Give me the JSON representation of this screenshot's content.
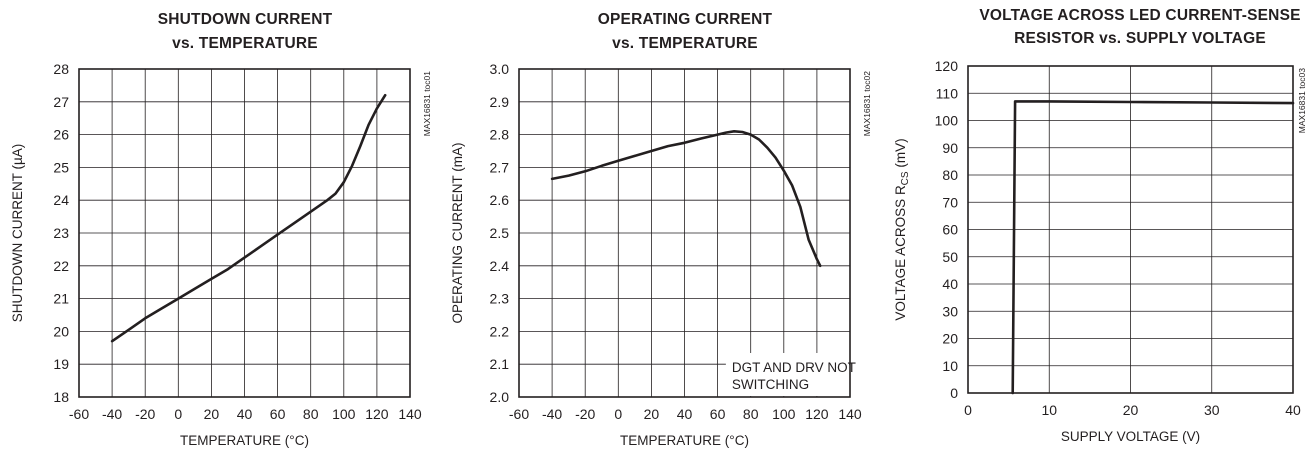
{
  "chart_data": [
    {
      "type": "line",
      "title": [
        "SHUTDOWN CURRENT",
        "vs. TEMPERATURE"
      ],
      "xlabel": "TEMPERATURE (°C)",
      "ylabel": "SHUTDOWN CURRENT (µA)",
      "side_label": "MAX16831 toc01",
      "xlim": [
        -60,
        140
      ],
      "ylim": [
        18,
        28
      ],
      "xticks": [
        "-60",
        "-40",
        "-20",
        "0",
        "20",
        "40",
        "60",
        "80",
        "100",
        "120",
        "140"
      ],
      "yticks": [
        "18",
        "19",
        "20",
        "21",
        "22",
        "23",
        "24",
        "25",
        "26",
        "27",
        "28"
      ],
      "grid": true,
      "x": [
        -40,
        -30,
        -20,
        -10,
        0,
        10,
        20,
        30,
        40,
        50,
        60,
        70,
        80,
        90,
        95,
        100,
        105,
        110,
        115,
        120,
        125
      ],
      "y": [
        19.7,
        20.05,
        20.4,
        20.7,
        21.0,
        21.3,
        21.6,
        21.9,
        22.25,
        22.6,
        22.95,
        23.3,
        23.65,
        24.0,
        24.2,
        24.55,
        25.05,
        25.65,
        26.3,
        26.8,
        27.2
      ]
    },
    {
      "type": "line",
      "title": [
        "OPERATING CURRENT",
        "vs. TEMPERATURE"
      ],
      "xlabel": "TEMPERATURE (°C)",
      "ylabel": "OPERATING CURRENT (mA)",
      "side_label": "MAX16831 toc02",
      "annotation": [
        "DGT AND DRV NOT",
        "SWITCHING"
      ],
      "xlim": [
        -60,
        140
      ],
      "ylim": [
        2.0,
        3.0
      ],
      "xticks": [
        "-60",
        "-40",
        "-20",
        "0",
        "20",
        "40",
        "60",
        "80",
        "100",
        "120",
        "140"
      ],
      "yticks": [
        "2.0",
        "2.1",
        "2.2",
        "2.3",
        "2.4",
        "2.5",
        "2.6",
        "2.7",
        "2.8",
        "2.9",
        "3.0"
      ],
      "grid": true,
      "x": [
        -40,
        -30,
        -20,
        -10,
        0,
        10,
        20,
        30,
        40,
        50,
        60,
        65,
        70,
        75,
        80,
        85,
        90,
        95,
        100,
        105,
        110,
        115,
        120,
        122
      ],
      "y": [
        2.665,
        2.675,
        2.688,
        2.705,
        2.72,
        2.735,
        2.75,
        2.765,
        2.775,
        2.788,
        2.8,
        2.806,
        2.81,
        2.808,
        2.8,
        2.785,
        2.76,
        2.73,
        2.69,
        2.645,
        2.58,
        2.48,
        2.42,
        2.4
      ]
    },
    {
      "type": "line",
      "title": [
        "VOLTAGE ACROSS LED CURRENT-SENSE",
        "RESISTOR vs. SUPPLY VOLTAGE"
      ],
      "xlabel": "SUPPLY VOLTAGE (V)",
      "ylabel": "VOLTAGE ACROSS RCS (mV)",
      "ylabel_parts": [
        "VOLTAGE ACROSS R",
        "CS",
        " (mV)"
      ],
      "side_label": "MAX16831 toc03",
      "xlim": [
        0,
        40
      ],
      "ylim": [
        0,
        120
      ],
      "xticks": [
        "0",
        "10",
        "20",
        "30",
        "40"
      ],
      "yticks": [
        "0",
        "10",
        "20",
        "30",
        "40",
        "50",
        "60",
        "70",
        "80",
        "90",
        "100",
        "110",
        "120"
      ],
      "grid": true,
      "x": [
        5.5,
        5.8,
        6.2,
        10,
        20,
        30,
        40
      ],
      "y": [
        0,
        107,
        107,
        107,
        106.8,
        106.6,
        106.4
      ]
    }
  ]
}
